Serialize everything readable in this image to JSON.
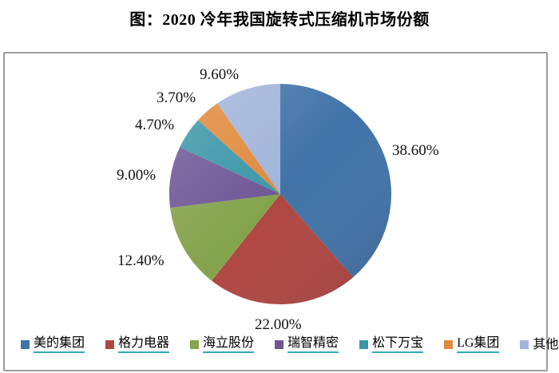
{
  "title": "图：2020 冷年我国旋转式压缩机市场份额",
  "chart_data": {
    "type": "pie",
    "title": "图：2020 冷年我国旋转式压缩机市场份额",
    "categories": [
      "美的集团",
      "格力电器",
      "海立股份",
      "瑞智精密",
      "松下万宝",
      "LG集团",
      "其他"
    ],
    "values": [
      38.6,
      22.0,
      12.4,
      9.0,
      4.7,
      3.7,
      9.6
    ],
    "slice_labels": [
      "38.60%",
      "22.00%",
      "12.40%",
      "9.00%",
      "4.70%",
      "3.70%",
      "9.60%"
    ],
    "colors": [
      "#4173a8",
      "#af4642",
      "#84a34c",
      "#6f5796",
      "#3b96a8",
      "#e08a3c",
      "#a2b4da"
    ],
    "start_angle_deg": 0,
    "direction": "clockwise",
    "legend_position": "bottom",
    "legend_underlined": [
      true,
      true,
      true,
      true,
      true,
      true,
      false
    ],
    "legend_underline_color": "#35a9b7",
    "frame_border_color": "#9e9e9e"
  }
}
